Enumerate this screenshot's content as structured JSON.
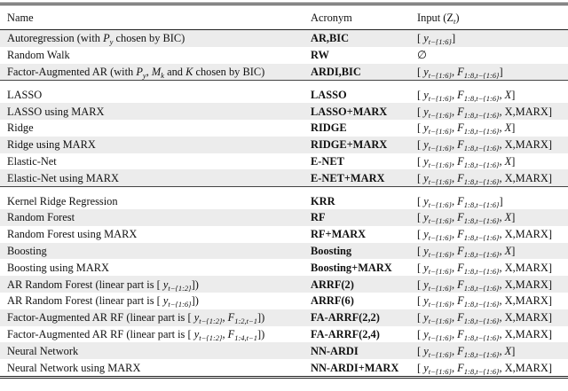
{
  "header": {
    "name": "Name",
    "acronym": "Acronym",
    "input": "Input (Z",
    "input_sub": "t",
    ")": ")"
  },
  "rows": [
    {
      "name": [
        {
          "t": "Autoregression (with "
        },
        {
          "v": "P",
          "s": "y"
        },
        {
          "t": " chosen by BIC)"
        }
      ],
      "acronym": "AR,BIC",
      "input": {
        "y": "t−{1:6}"
      },
      "shaded": true
    },
    {
      "name": [
        {
          "t": "Random Walk"
        }
      ],
      "acronym": "RW",
      "input": {
        "empty": "∅"
      },
      "shaded": false
    },
    {
      "name": [
        {
          "t": "Factor-Augmented AR (with "
        },
        {
          "v": "P",
          "s": "y"
        },
        {
          "t": ", "
        },
        {
          "v": "M",
          "s": "k"
        },
        {
          "t": " and "
        },
        {
          "v": "K"
        },
        {
          "t": " chosen by BIC)"
        }
      ],
      "acronym": "ARDI,BIC",
      "input": {
        "y": "t−{1:6}",
        "F": "1:8,t−{1:6}"
      },
      "shaded": true,
      "end": true
    },
    {
      "name": [
        {
          "t": "LASSO"
        }
      ],
      "acronym": "LASSO",
      "input": {
        "y": "t−{1:6}",
        "F": "1:8,t−{1:6}",
        "tail": "X"
      },
      "shaded": false,
      "start": true
    },
    {
      "name": [
        {
          "t": "LASSO using MARX"
        }
      ],
      "acronym": "LASSO+MARX",
      "input": {
        "y": "t−{1:6}",
        "F": "1:8,t−{1:6}",
        "tail": "X,MARX"
      },
      "shaded": true
    },
    {
      "name": [
        {
          "t": "Ridge"
        }
      ],
      "acronym": "RIDGE",
      "input": {
        "y": "t−{1:6}",
        "F": "1:8,t−{1:6}",
        "tail": "X"
      },
      "shaded": false
    },
    {
      "name": [
        {
          "t": "Ridge using MARX"
        }
      ],
      "acronym": "RIDGE+MARX",
      "input": {
        "y": "t−{1:6}",
        "F": "1:8,t−{1:6}",
        "tail": "X,MARX"
      },
      "shaded": true
    },
    {
      "name": [
        {
          "t": "Elastic-Net"
        }
      ],
      "acronym": "E-NET",
      "input": {
        "y": "t−{1:6}",
        "F": "1:8,t−{1:6}",
        "tail": "X"
      },
      "shaded": false
    },
    {
      "name": [
        {
          "t": "Elastic-Net using MARX"
        }
      ],
      "acronym": "E-NET+MARX",
      "input": {
        "y": "t−{1:6}",
        "F": "1:8,t−{1:6}",
        "tail": "X,MARX"
      },
      "shaded": true,
      "end": true
    },
    {
      "name": [
        {
          "t": "Kernel Ridge Regression"
        }
      ],
      "acronym": "KRR",
      "input": {
        "y": "t−{1:6}",
        "F": "1:8,t−{1:6}"
      },
      "shaded": false,
      "start": true
    },
    {
      "name": [
        {
          "t": "Random Forest"
        }
      ],
      "acronym": "RF",
      "input": {
        "y": "t−{1:6}",
        "F": "1:8,t−{1:6}",
        "tail": "X"
      },
      "shaded": true
    },
    {
      "name": [
        {
          "t": "Random Forest using MARX"
        }
      ],
      "acronym": "RF+MARX",
      "input": {
        "y": "t−{1:6}",
        "F": "1:8,t−{1:6}",
        "tail": "X,MARX"
      },
      "shaded": false
    },
    {
      "name": [
        {
          "t": "Boosting"
        }
      ],
      "acronym": "Boosting",
      "input": {
        "y": "t−{1:6}",
        "F": "1:8,t−{1:6}",
        "tail": "X"
      },
      "shaded": true
    },
    {
      "name": [
        {
          "t": "Boosting using MARX"
        }
      ],
      "acronym": "Boosting+MARX",
      "input": {
        "y": "t−{1:6}",
        "F": "1:8,t−{1:6}",
        "tail": "X,MARX"
      },
      "shaded": false
    },
    {
      "name": [
        {
          "t": "AR Random Forest (linear part is [ "
        },
        {
          "v": "y",
          "s": "t−{1:2}"
        },
        {
          "t": "])"
        }
      ],
      "acronym": "ARRF(2)",
      "input": {
        "y": "t−{1:6}",
        "F": "1:8,t−{1:6}",
        "tail": "X,MARX"
      },
      "shaded": true
    },
    {
      "name": [
        {
          "t": "AR Random Forest (linear part is [ "
        },
        {
          "v": "y",
          "s": "t−{1:6}"
        },
        {
          "t": "])"
        }
      ],
      "acronym": "ARRF(6)",
      "input": {
        "y": "t−{1:6}",
        "F": "1:8,t−{1:6}",
        "tail": "X,MARX"
      },
      "shaded": false
    },
    {
      "name": [
        {
          "t": "Factor-Augmented AR RF (linear part is [ "
        },
        {
          "v": "y",
          "s": "t−{1:2}"
        },
        {
          "t": ", "
        },
        {
          "v": "F",
          "s": "1:2,t−1"
        },
        {
          "t": "])"
        }
      ],
      "acronym": "FA-ARRF(2,2)",
      "input": {
        "y": "t−{1:6}",
        "F": "1:8,t−{1:6}",
        "tail": "X,MARX"
      },
      "shaded": true
    },
    {
      "name": [
        {
          "t": "Factor-Augmented AR RF (linear part is [ "
        },
        {
          "v": "y",
          "s": "t−{1:2}"
        },
        {
          "t": ", "
        },
        {
          "v": "F",
          "s": "1:4,t−1"
        },
        {
          "t": "])"
        }
      ],
      "acronym": "FA-ARRF(2,4)",
      "input": {
        "y": "t−{1:6}",
        "F": "1:8,t−{1:6}",
        "tail": "X,MARX"
      },
      "shaded": false
    },
    {
      "name": [
        {
          "t": "Neural Network"
        }
      ],
      "acronym": "NN-ARDI",
      "input": {
        "y": "t−{1:6}",
        "F": "1:8,t−{1:6}",
        "tail": "X"
      },
      "shaded": true
    },
    {
      "name": [
        {
          "t": "Neural Network using MARX"
        }
      ],
      "acronym": "NN-ARDI+MARX",
      "input": {
        "y": "t−{1:6}",
        "F": "1:8,t−{1:6}",
        "tail": "X,MARX"
      },
      "shaded": false
    }
  ]
}
